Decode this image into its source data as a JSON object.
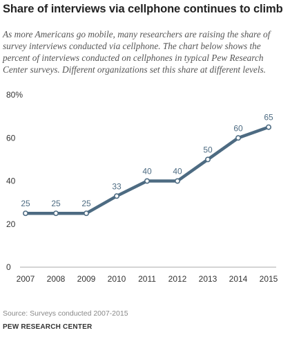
{
  "chart_data": {
    "type": "line",
    "title": "Share of interviews via cellphone continues to climb",
    "subtitle": "As more Americans go mobile, many researchers are raising the share of survey interviews conducted via cellphone. The chart below shows the percent of interviews conducted on cellphones in typical Pew Research Center surveys. Different organizations set this share at different levels.",
    "x": [
      "2007",
      "2008",
      "2009",
      "2010",
      "2011",
      "2012",
      "2013",
      "2014",
      "2015"
    ],
    "values": [
      25,
      25,
      25,
      33,
      40,
      40,
      50,
      60,
      65
    ],
    "data_labels": [
      "25",
      "25",
      "25",
      "33",
      "40",
      "40",
      "50",
      "60",
      "65"
    ],
    "yticks": [
      "0",
      "20",
      "40",
      "60",
      "80%"
    ],
    "ytick_values": [
      0,
      20,
      40,
      60,
      80
    ],
    "ylim": [
      0,
      80
    ],
    "xlabel": "",
    "ylabel": "",
    "grid": false,
    "line_color": "#4d6b82"
  },
  "footer": {
    "source": "Source: Surveys conducted 2007-2015",
    "org": "PEW RESEARCH CENTER"
  }
}
